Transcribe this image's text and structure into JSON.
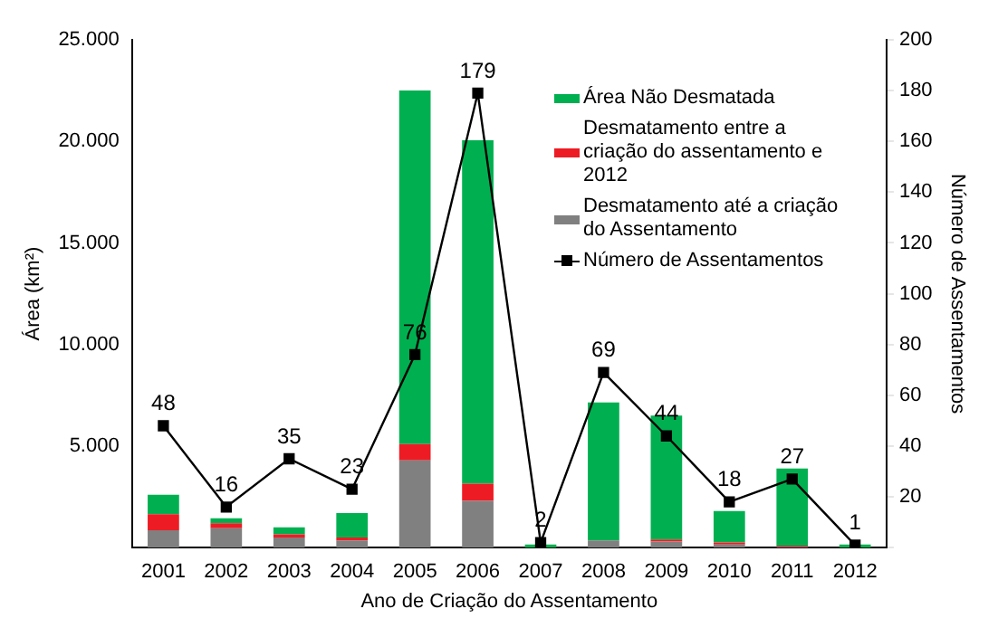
{
  "chart_data": {
    "type": "bar",
    "stacked": true,
    "xlabel": "Ano de Criação do Assentamento",
    "ylabel": "Área (km²)",
    "y2label": "Número de Assentamentos",
    "categories": [
      "2001",
      "2002",
      "2003",
      "2004",
      "2005",
      "2006",
      "2007",
      "2008",
      "2009",
      "2010",
      "2011",
      "2012"
    ],
    "ylim": [
      0,
      25000
    ],
    "yticks": [
      {
        "value": 0,
        "label": null
      },
      {
        "value": 5000,
        "label": "5.000"
      },
      {
        "value": 10000,
        "label": "10.000"
      },
      {
        "value": 15000,
        "label": "15.000"
      },
      {
        "value": 20000,
        "label": "20.000"
      },
      {
        "value": 25000,
        "label": "25.000"
      }
    ],
    "y2lim": [
      0,
      200
    ],
    "y2ticks": [
      {
        "value": 0,
        "label": null
      },
      20,
      40,
      60,
      80,
      100,
      120,
      140,
      160,
      180,
      200
    ],
    "grid": false,
    "legend": "top right",
    "series": [
      {
        "name": "Desmatamento até a criação do Assentamento",
        "color": "#808080",
        "values": [
          850,
          950,
          500,
          350,
          4300,
          2300,
          null,
          350,
          300,
          150,
          50,
          null
        ]
      },
      {
        "name": "Desmatamento entre a criação do assentamento e 2012",
        "color": "#ed1c24",
        "values": [
          800,
          250,
          150,
          150,
          800,
          850,
          null,
          null,
          100,
          100,
          50,
          null
        ]
      },
      {
        "name": "Área Não Desmatada",
        "color": "#00b050",
        "values": [
          950,
          250,
          350,
          1200,
          17400,
          16900,
          150,
          6800,
          6100,
          1550,
          3800,
          150
        ]
      },
      {
        "name": "Número de Assentamentos",
        "type": "line",
        "axis": "y2",
        "color": "#000000",
        "marker": "square",
        "values": [
          48,
          16,
          35,
          23,
          76,
          179,
          2,
          69,
          44,
          18,
          27,
          1
        ],
        "value_labels": [
          "48",
          "16",
          "35",
          "23",
          "76",
          "179",
          "2",
          "69",
          "44",
          "18",
          "27",
          "1"
        ]
      }
    ]
  }
}
